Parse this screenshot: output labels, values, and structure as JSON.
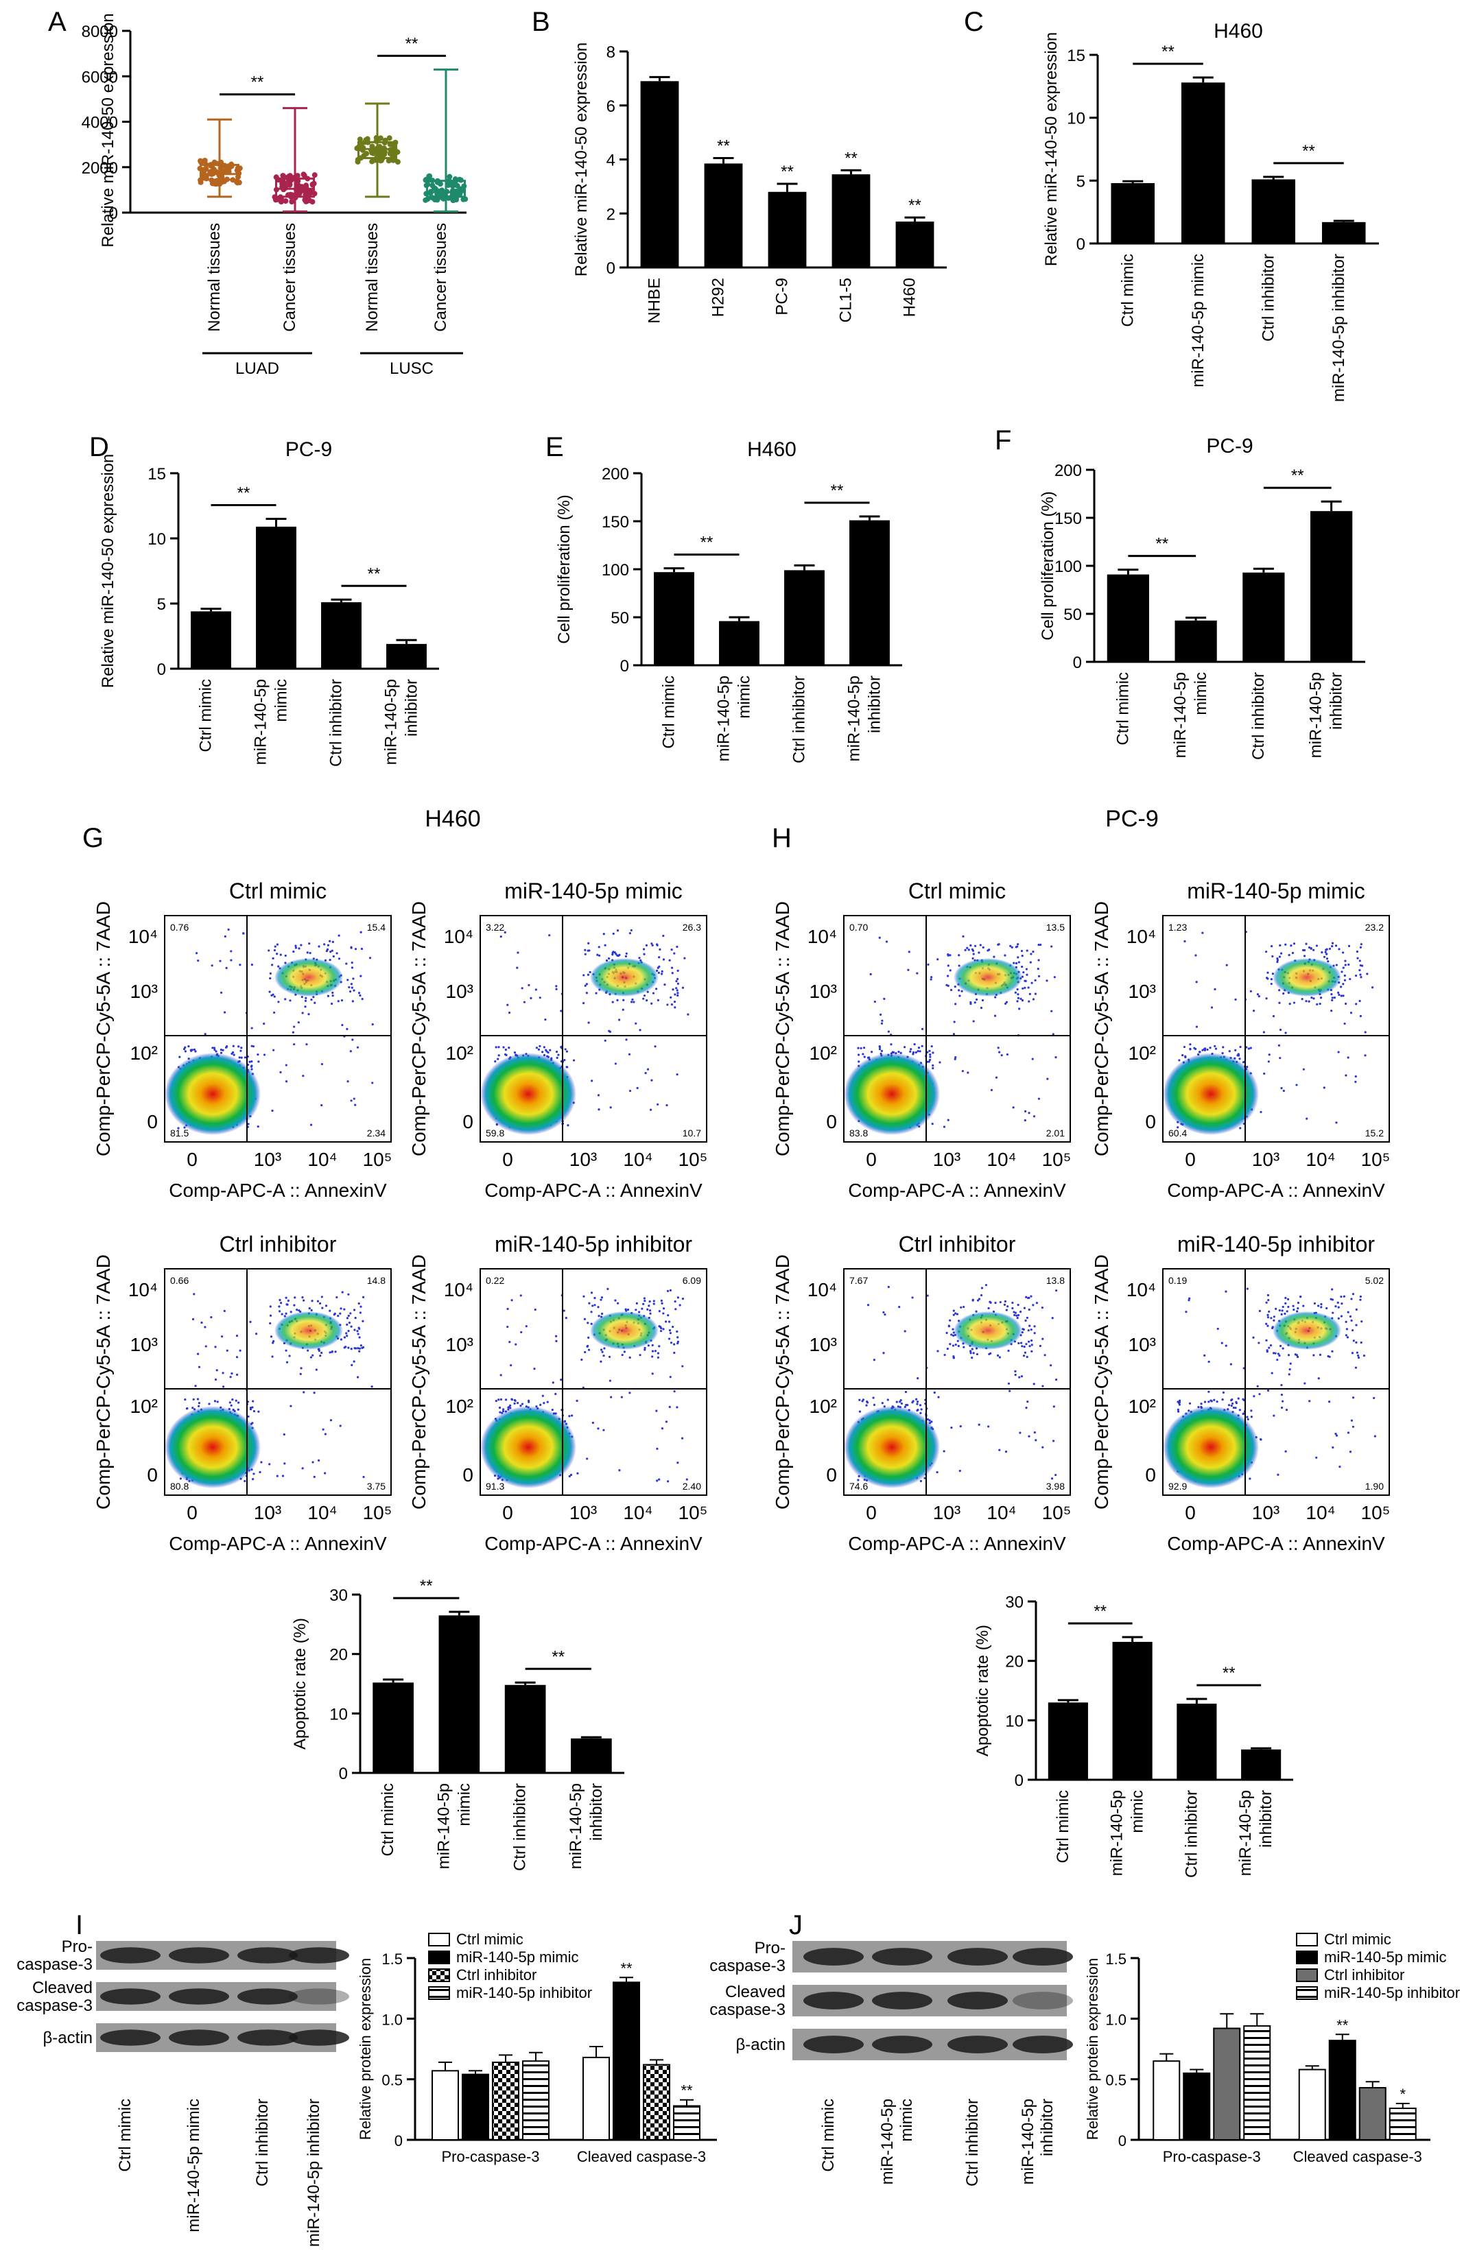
{
  "colors": {
    "black": "#000000",
    "dark_gray": "#6e6e6e",
    "luad_normal": "#b5651d",
    "luad_cancer": "#a8244e",
    "lusc_normal": "#6f7a1a",
    "lusc_cancer": "#1f8a6b",
    "flow_blue": "#2a35d6",
    "flow_core": "#e01010"
  },
  "chart_data": [
    {
      "panel": "A",
      "type": "box",
      "title": "",
      "ylabel": "Relative miR-140-50 expression",
      "ylim": [
        0,
        8000
      ],
      "yticks": [
        "0",
        "2000",
        "4000",
        "6000",
        "8000"
      ],
      "categories": [
        "Normal tissues",
        "Cancer tissues",
        "Normal tissues",
        "Cancer tissues"
      ],
      "groups": [
        {
          "label": "LUAD",
          "cats": [
            0,
            1
          ]
        },
        {
          "label": "LUSC",
          "cats": [
            2,
            3
          ]
        }
      ],
      "boxes": [
        {
          "min": 700,
          "q1": 1450,
          "median": 1700,
          "q3": 2100,
          "max": 4100
        },
        {
          "min": 50,
          "q1": 700,
          "median": 1050,
          "q3": 1500,
          "max": 4600
        },
        {
          "min": 700,
          "q1": 2400,
          "median": 2800,
          "q3": 3100,
          "max": 4800
        },
        {
          "min": 50,
          "q1": 700,
          "median": 900,
          "q3": 1400,
          "max": 6300
        }
      ],
      "sig": [
        {
          "from": 0,
          "to": 1,
          "label": "**"
        },
        {
          "from": 2,
          "to": 3,
          "label": "**"
        }
      ]
    },
    {
      "panel": "B",
      "type": "bar",
      "title": "",
      "ylabel": "Relative miR-140-50 expression",
      "ylim": [
        0,
        8
      ],
      "yticks": [
        "0",
        "2",
        "4",
        "6",
        "8"
      ],
      "categories": [
        "NHBE",
        "H292",
        "PC-9",
        "CL1-5",
        "H460"
      ],
      "values": [
        6.9,
        3.85,
        2.8,
        3.45,
        1.7
      ],
      "errors": [
        0.15,
        0.2,
        0.3,
        0.15,
        0.15
      ],
      "labels": [
        "",
        "**",
        "**",
        "**",
        "**"
      ]
    },
    {
      "panel": "C",
      "type": "bar",
      "title": "H460",
      "ylabel": "Relative miR-140-50 expression",
      "ylim": [
        0,
        15
      ],
      "yticks": [
        "0",
        "5",
        "10",
        "15"
      ],
      "categories": [
        "Ctrl mimic",
        "miR-140-5p mimic",
        "Ctrl inhibitor",
        "miR-140-5p inhibitor"
      ],
      "values": [
        4.8,
        12.8,
        5.1,
        1.7
      ],
      "errors": [
        0.15,
        0.4,
        0.2,
        0.1
      ],
      "sig": [
        {
          "from": 0,
          "to": 1,
          "label": "**"
        },
        {
          "from": 2,
          "to": 3,
          "label": "**"
        }
      ]
    },
    {
      "panel": "D",
      "type": "bar",
      "title": "PC-9",
      "ylabel": "Relative miR-140-50 expression",
      "ylim": [
        0,
        15
      ],
      "yticks": [
        "0",
        "5",
        "10",
        "15"
      ],
      "categories": [
        "Ctrl mimic",
        "miR-140-5p mimic",
        "Ctrl inhibitor",
        "miR-140-5p inhibitor"
      ],
      "values": [
        4.4,
        10.9,
        5.1,
        1.9
      ],
      "errors": [
        0.2,
        0.6,
        0.2,
        0.3
      ],
      "sig": [
        {
          "from": 0,
          "to": 1,
          "label": "**"
        },
        {
          "from": 2,
          "to": 3,
          "label": "**"
        }
      ]
    },
    {
      "panel": "E",
      "type": "bar",
      "title": "H460",
      "ylabel": "Cell proliferation (%)",
      "ylim": [
        0,
        200
      ],
      "yticks": [
        "0",
        "50",
        "100",
        "150",
        "200"
      ],
      "categories": [
        "Ctrl mimic",
        "miR-140-5p mimic",
        "Ctrl inhibitor",
        "miR-140-5p inhibitor"
      ],
      "values": [
        97,
        46,
        99,
        151
      ],
      "errors": [
        4,
        4,
        5,
        4
      ],
      "sig": [
        {
          "from": 0,
          "to": 1,
          "label": "**"
        },
        {
          "from": 2,
          "to": 3,
          "label": "**"
        }
      ]
    },
    {
      "panel": "F",
      "type": "bar",
      "title": "PC-9",
      "ylabel": "Cell proliferation (%)",
      "ylim": [
        0,
        200
      ],
      "yticks": [
        "0",
        "50",
        "100",
        "150",
        "200"
      ],
      "categories": [
        "Ctrl mimic",
        "miR-140-5p mimic",
        "Ctrl inhibitor",
        "miR-140-5p inhibitor"
      ],
      "values": [
        91,
        43,
        93,
        157
      ],
      "errors": [
        5,
        3,
        4,
        10
      ],
      "sig": [
        {
          "from": 0,
          "to": 1,
          "label": "**"
        },
        {
          "from": 2,
          "to": 3,
          "label": "**"
        }
      ]
    },
    {
      "panel": "G-bar",
      "type": "bar",
      "title": "",
      "ylabel": "Apoptotic rate (%)",
      "ylim": [
        0,
        30
      ],
      "yticks": [
        "0",
        "10",
        "20",
        "30"
      ],
      "categories": [
        "Ctrl mimic",
        "miR-140-5p mimic",
        "Ctrl inhibitor",
        "miR-140-5p inhibitor"
      ],
      "values": [
        15.2,
        26.5,
        14.8,
        5.8
      ],
      "errors": [
        0.5,
        0.6,
        0.4,
        0.2
      ],
      "sig": [
        {
          "from": 0,
          "to": 1,
          "label": "**"
        },
        {
          "from": 2,
          "to": 3,
          "label": "**"
        }
      ]
    },
    {
      "panel": "H-bar",
      "type": "bar",
      "title": "",
      "ylabel": "Apoptotic rate (%)",
      "ylim": [
        0,
        30
      ],
      "yticks": [
        "0",
        "10",
        "20",
        "30"
      ],
      "categories": [
        "Ctrl mimic",
        "miR-140-5p mimic",
        "Ctrl inhibitor",
        "miR-140-5p inhibitor"
      ],
      "values": [
        13,
        23.2,
        12.8,
        5.1
      ],
      "errors": [
        0.4,
        0.8,
        0.8,
        0.2
      ],
      "sig": [
        {
          "from": 0,
          "to": 1,
          "label": "**"
        },
        {
          "from": 2,
          "to": 3,
          "label": "**"
        }
      ]
    },
    {
      "panel": "I-bar",
      "type": "grouped-bar",
      "title": "",
      "ylabel": "Relative protein expression",
      "ylim": [
        0,
        1.5
      ],
      "yticks": [
        "0",
        "0.5",
        "1.0",
        "1.5"
      ],
      "categories": [
        "Pro-caspase-3",
        "Cleaved caspase-3"
      ],
      "series": [
        {
          "name": "Ctrl mimic",
          "values": [
            0.57,
            0.68
          ],
          "errors": [
            0.07,
            0.09
          ],
          "labels": [
            "",
            ""
          ]
        },
        {
          "name": "miR-140-5p mimic",
          "values": [
            0.54,
            1.3
          ],
          "errors": [
            0.03,
            0.04
          ],
          "labels": [
            "",
            "**"
          ]
        },
        {
          "name": "Ctrl inhibitor",
          "values": [
            0.64,
            0.62
          ],
          "errors": [
            0.06,
            0.04
          ],
          "labels": [
            "",
            ""
          ]
        },
        {
          "name": "miR-140-5p inhibitor",
          "values": [
            0.65,
            0.28
          ],
          "errors": [
            0.07,
            0.05
          ],
          "labels": [
            "",
            "**"
          ]
        }
      ]
    },
    {
      "panel": "J-bar",
      "type": "grouped-bar",
      "title": "",
      "ylabel": "Relative protein expression",
      "ylim": [
        0,
        1.5
      ],
      "yticks": [
        "0",
        "0.5",
        "1.0",
        "1.5"
      ],
      "categories": [
        "Pro-caspase-3",
        "Cleaved caspase-3"
      ],
      "series": [
        {
          "name": "Ctrl mimic",
          "values": [
            0.65,
            0.58
          ],
          "errors": [
            0.06,
            0.03
          ],
          "labels": [
            "",
            ""
          ]
        },
        {
          "name": "miR-140-5p mimic",
          "values": [
            0.55,
            0.82
          ],
          "errors": [
            0.03,
            0.05
          ],
          "labels": [
            "",
            "**"
          ]
        },
        {
          "name": "Ctrl inhibitor",
          "values": [
            0.92,
            0.43
          ],
          "errors": [
            0.12,
            0.05
          ],
          "labels": [
            "",
            ""
          ]
        },
        {
          "name": "miR-140-5p inhibitor",
          "values": [
            0.94,
            0.26
          ],
          "errors": [
            0.1,
            0.04
          ],
          "labels": [
            "",
            "*"
          ]
        }
      ]
    }
  ],
  "flow": {
    "G_title": "H460",
    "H_title": "PC-9",
    "xlabel": "Comp-APC-A :: AnnexinV",
    "ylabel": "Comp-PerCP-Cy5-5A :: 7AAD",
    "xticks": [
      "0",
      "10³",
      "10⁴",
      "10⁵"
    ],
    "yticks": [
      "0",
      "10²",
      "10³",
      "10⁴"
    ],
    "plots": [
      {
        "panel": "G",
        "title": "Ctrl mimic",
        "q": [
          "0.76",
          "15.4",
          "81.5",
          "2.34"
        ]
      },
      {
        "panel": "G",
        "title": "miR-140-5p mimic",
        "q": [
          "3.22",
          "26.3",
          "59.8",
          "10.7"
        ]
      },
      {
        "panel": "G",
        "title": "Ctrl inhibitor",
        "q": [
          "0.66",
          "14.8",
          "80.8",
          "3.75"
        ]
      },
      {
        "panel": "G",
        "title": "miR-140-5p inhibitor",
        "q": [
          "0.22",
          "6.09",
          "91.3",
          "2.40"
        ]
      },
      {
        "panel": "H",
        "title": "Ctrl mimic",
        "q": [
          "0.70",
          "13.5",
          "83.8",
          "2.01"
        ]
      },
      {
        "panel": "H",
        "title": "miR-140-5p mimic",
        "q": [
          "1.23",
          "23.2",
          "60.4",
          "15.2"
        ]
      },
      {
        "panel": "H",
        "title": "Ctrl inhibitor",
        "q": [
          "7.67",
          "13.8",
          "74.6",
          "3.98"
        ]
      },
      {
        "panel": "H",
        "title": "miR-140-5p inhibitor",
        "q": [
          "0.19",
          "5.02",
          "92.9",
          "1.90"
        ]
      }
    ]
  },
  "blots": {
    "I": {
      "rows": [
        "Pro-\ncaspase-3",
        "Cleaved\ncaspase-3",
        "β-actin"
      ],
      "lanes": [
        "Ctrl mimic",
        "miR-140-5p mimic",
        "Ctrl inhibitor",
        "miR-140-5p inhibitor"
      ]
    },
    "J": {
      "rows": [
        "Pro-\ncaspase-3",
        "Cleaved\ncaspase-3",
        "β-actin"
      ],
      "lanes": [
        "Ctrl mimic",
        "miR-140-5p\nmimic",
        "Ctrl inhibitor",
        "miR-140-5p\ninhibitor"
      ]
    }
  },
  "panel_letters": [
    "A",
    "B",
    "C",
    "D",
    "E",
    "F",
    "G",
    "H",
    "I",
    "J"
  ]
}
